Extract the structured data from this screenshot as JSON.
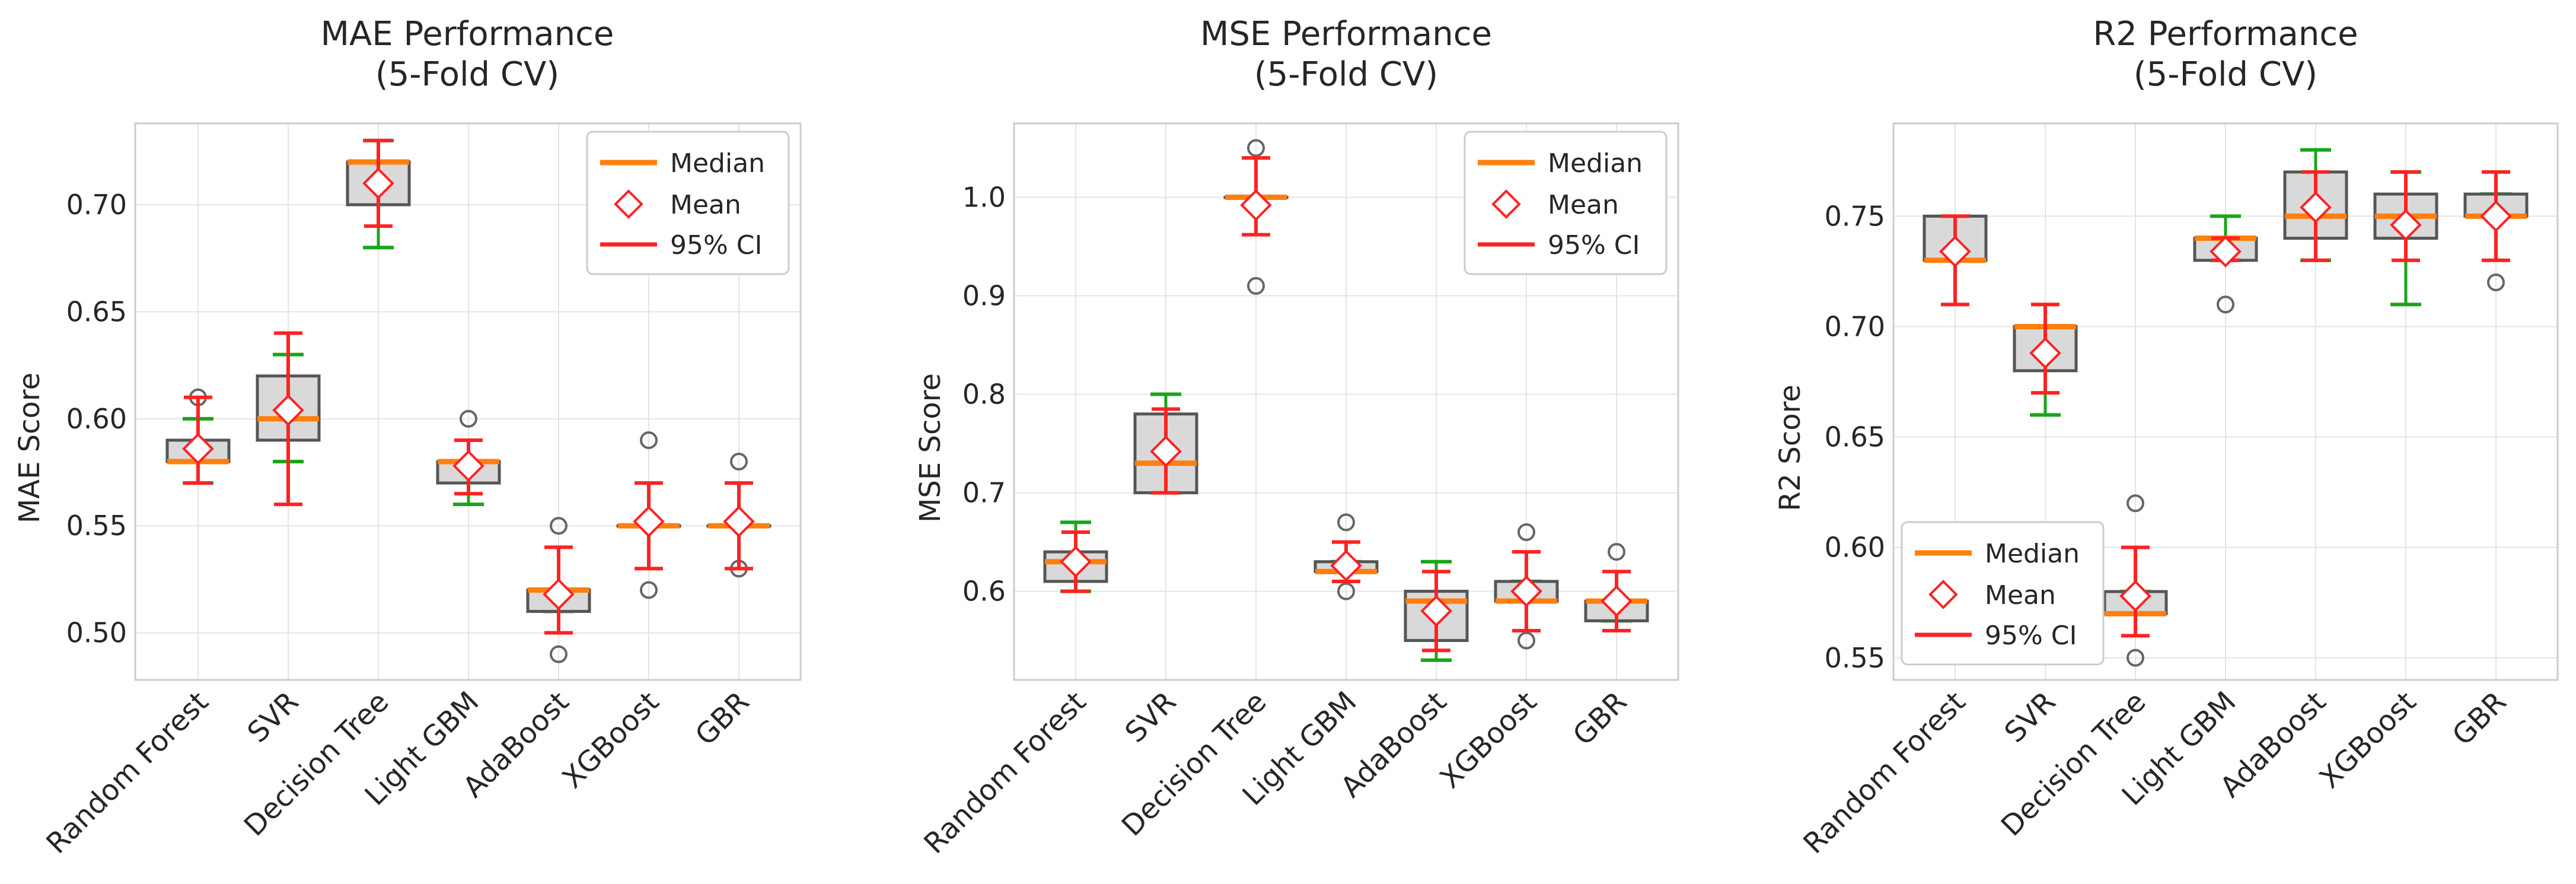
{
  "figure": {
    "colors": {
      "box_fill": "#d9d9d9",
      "box_edge": "#555555",
      "whisker": "#1aa51a",
      "median": "#ff7f0e",
      "mean_edge": "#ff2222",
      "ci": "#ff2222",
      "outlier": "#666666",
      "grid": "#e4e4e4",
      "spine": "#cccccc"
    }
  },
  "chart_data": [
    {
      "type": "box",
      "title_lines": [
        "MAE Performance",
        "(5-Fold CV)"
      ],
      "ylabel": "MAE Score",
      "xlabel": "",
      "ylim": [
        0.478,
        0.738
      ],
      "yticks": [
        0.5,
        0.55,
        0.6,
        0.65,
        0.7
      ],
      "ytick_labels": [
        "0.50",
        "0.55",
        "0.60",
        "0.65",
        "0.70"
      ],
      "grid": true,
      "legend": {
        "position": "top-right",
        "entries": [
          "Median",
          "Mean",
          "95% CI"
        ]
      },
      "categories": [
        "Random Forest",
        "SVR",
        "Decision Tree",
        "Light GBM",
        "AdaBoost",
        "XGBoost",
        "GBR"
      ],
      "series": [
        {
          "name": "Random Forest",
          "whisker_low": 0.57,
          "q1": 0.58,
          "median": 0.58,
          "q3": 0.59,
          "whisker_high": 0.6,
          "mean": 0.586,
          "ci_low": 0.57,
          "ci_high": 0.61,
          "outliers": [
            0.61
          ]
        },
        {
          "name": "SVR",
          "whisker_low": 0.58,
          "q1": 0.59,
          "median": 0.6,
          "q3": 0.62,
          "whisker_high": 0.63,
          "mean": 0.604,
          "ci_low": 0.56,
          "ci_high": 0.64,
          "outliers": []
        },
        {
          "name": "Decision Tree",
          "whisker_low": 0.68,
          "q1": 0.7,
          "median": 0.72,
          "q3": 0.72,
          "whisker_high": 0.73,
          "mean": 0.71,
          "ci_low": 0.69,
          "ci_high": 0.73,
          "outliers": []
        },
        {
          "name": "Light GBM",
          "whisker_low": 0.56,
          "q1": 0.57,
          "median": 0.58,
          "q3": 0.58,
          "whisker_high": 0.58,
          "mean": 0.578,
          "ci_low": 0.565,
          "ci_high": 0.59,
          "outliers": [
            0.6
          ]
        },
        {
          "name": "AdaBoost",
          "whisker_low": 0.51,
          "q1": 0.51,
          "median": 0.52,
          "q3": 0.52,
          "whisker_high": 0.52,
          "mean": 0.518,
          "ci_low": 0.5,
          "ci_high": 0.54,
          "outliers": [
            0.49,
            0.55
          ]
        },
        {
          "name": "XGBoost",
          "whisker_low": 0.55,
          "q1": 0.55,
          "median": 0.55,
          "q3": 0.55,
          "whisker_high": 0.55,
          "mean": 0.552,
          "ci_low": 0.53,
          "ci_high": 0.57,
          "outliers": [
            0.52,
            0.59
          ]
        },
        {
          "name": "GBR",
          "whisker_low": 0.55,
          "q1": 0.55,
          "median": 0.55,
          "q3": 0.55,
          "whisker_high": 0.55,
          "mean": 0.552,
          "ci_low": 0.53,
          "ci_high": 0.57,
          "outliers": [
            0.53,
            0.58
          ]
        }
      ]
    },
    {
      "type": "box",
      "title_lines": [
        "MSE Performance",
        "(5-Fold CV)"
      ],
      "ylabel": "MSE Score",
      "xlabel": "",
      "ylim": [
        0.51,
        1.075
      ],
      "yticks": [
        0.6,
        0.7,
        0.8,
        0.9,
        1.0
      ],
      "ytick_labels": [
        "0.6",
        "0.7",
        "0.8",
        "0.9",
        "1.0"
      ],
      "grid": true,
      "legend": {
        "position": "top-right",
        "entries": [
          "Median",
          "Mean",
          "95% CI"
        ]
      },
      "categories": [
        "Random Forest",
        "SVR",
        "Decision Tree",
        "Light GBM",
        "AdaBoost",
        "XGBoost",
        "GBR"
      ],
      "series": [
        {
          "name": "Random Forest",
          "whisker_low": 0.6,
          "q1": 0.61,
          "median": 0.63,
          "q3": 0.64,
          "whisker_high": 0.67,
          "mean": 0.63,
          "ci_low": 0.6,
          "ci_high": 0.66,
          "outliers": []
        },
        {
          "name": "SVR",
          "whisker_low": 0.7,
          "q1": 0.7,
          "median": 0.73,
          "q3": 0.78,
          "whisker_high": 0.8,
          "mean": 0.742,
          "ci_low": 0.7,
          "ci_high": 0.785,
          "outliers": []
        },
        {
          "name": "Decision Tree",
          "whisker_low": 1.0,
          "q1": 1.0,
          "median": 1.0,
          "q3": 1.0,
          "whisker_high": 1.0,
          "mean": 0.992,
          "ci_low": 0.962,
          "ci_high": 1.04,
          "outliers": [
            0.91,
            1.05
          ]
        },
        {
          "name": "Light GBM",
          "whisker_low": 0.62,
          "q1": 0.62,
          "median": 0.62,
          "q3": 0.63,
          "whisker_high": 0.63,
          "mean": 0.626,
          "ci_low": 0.61,
          "ci_high": 0.65,
          "outliers": [
            0.6,
            0.67
          ]
        },
        {
          "name": "AdaBoost",
          "whisker_low": 0.53,
          "q1": 0.55,
          "median": 0.59,
          "q3": 0.6,
          "whisker_high": 0.63,
          "mean": 0.58,
          "ci_low": 0.54,
          "ci_high": 0.62,
          "outliers": []
        },
        {
          "name": "XGBoost",
          "whisker_low": 0.59,
          "q1": 0.59,
          "median": 0.59,
          "q3": 0.61,
          "whisker_high": 0.61,
          "mean": 0.6,
          "ci_low": 0.56,
          "ci_high": 0.64,
          "outliers": [
            0.55,
            0.66
          ]
        },
        {
          "name": "GBR",
          "whisker_low": 0.57,
          "q1": 0.57,
          "median": 0.59,
          "q3": 0.59,
          "whisker_high": 0.59,
          "mean": 0.59,
          "ci_low": 0.56,
          "ci_high": 0.62,
          "outliers": [
            0.64
          ]
        }
      ]
    },
    {
      "type": "box",
      "title_lines": [
        "R2 Performance",
        "(5-Fold CV)"
      ],
      "ylabel": "R2 Score",
      "xlabel": "",
      "ylim": [
        0.54,
        0.792
      ],
      "yticks": [
        0.55,
        0.6,
        0.65,
        0.7,
        0.75
      ],
      "ytick_labels": [
        "0.55",
        "0.60",
        "0.65",
        "0.70",
        "0.75"
      ],
      "grid": true,
      "legend": {
        "position": "bottom-left",
        "entries": [
          "Median",
          "Mean",
          "95% CI"
        ]
      },
      "categories": [
        "Random Forest",
        "SVR",
        "Decision Tree",
        "Light GBM",
        "AdaBoost",
        "XGBoost",
        "GBR"
      ],
      "series": [
        {
          "name": "Random Forest",
          "whisker_low": 0.73,
          "q1": 0.73,
          "median": 0.73,
          "q3": 0.75,
          "whisker_high": 0.75,
          "mean": 0.734,
          "ci_low": 0.71,
          "ci_high": 0.75,
          "outliers": []
        },
        {
          "name": "SVR",
          "whisker_low": 0.66,
          "q1": 0.68,
          "median": 0.7,
          "q3": 0.7,
          "whisker_high": 0.7,
          "mean": 0.688,
          "ci_low": 0.67,
          "ci_high": 0.71,
          "outliers": []
        },
        {
          "name": "Decision Tree",
          "whisker_low": 0.57,
          "q1": 0.57,
          "median": 0.57,
          "q3": 0.58,
          "whisker_high": 0.58,
          "mean": 0.578,
          "ci_low": 0.56,
          "ci_high": 0.6,
          "outliers": [
            0.55,
            0.62
          ]
        },
        {
          "name": "Light GBM",
          "whisker_low": 0.73,
          "q1": 0.73,
          "median": 0.74,
          "q3": 0.74,
          "whisker_high": 0.75,
          "mean": 0.734,
          "ci_low": 0.73,
          "ci_high": 0.74,
          "outliers": [
            0.71
          ]
        },
        {
          "name": "AdaBoost",
          "whisker_low": 0.73,
          "q1": 0.74,
          "median": 0.75,
          "q3": 0.77,
          "whisker_high": 0.78,
          "mean": 0.754,
          "ci_low": 0.73,
          "ci_high": 0.77,
          "outliers": []
        },
        {
          "name": "XGBoost",
          "whisker_low": 0.71,
          "q1": 0.74,
          "median": 0.75,
          "q3": 0.76,
          "whisker_high": 0.77,
          "mean": 0.746,
          "ci_low": 0.73,
          "ci_high": 0.77,
          "outliers": []
        },
        {
          "name": "GBR",
          "whisker_low": 0.75,
          "q1": 0.75,
          "median": 0.75,
          "q3": 0.76,
          "whisker_high": 0.76,
          "mean": 0.75,
          "ci_low": 0.73,
          "ci_high": 0.77,
          "outliers": [
            0.72
          ]
        }
      ]
    }
  ]
}
